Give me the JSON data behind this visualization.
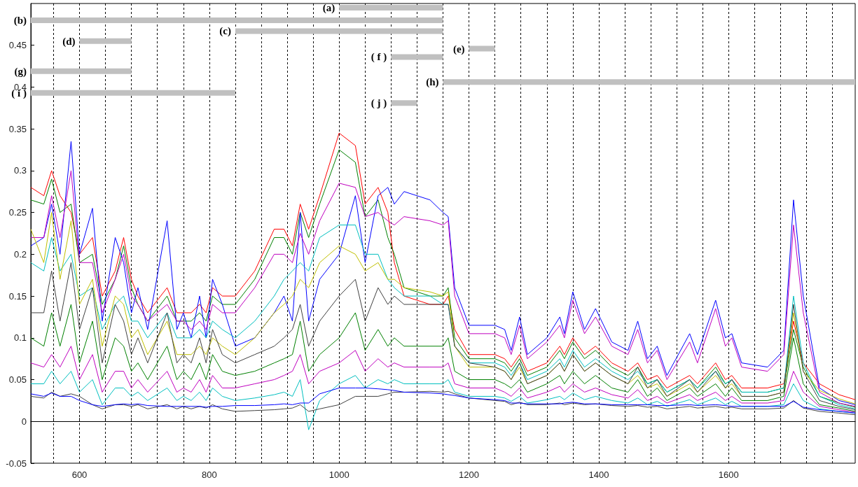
{
  "chart_data": {
    "type": "line",
    "marker": "none",
    "line_style": "solid",
    "grid": "x",
    "x": [
      525,
      545,
      557,
      570,
      587,
      600,
      620,
      635,
      655,
      668,
      680,
      690,
      705,
      735,
      750,
      760,
      772,
      785,
      795,
      805,
      820,
      840,
      870,
      900,
      915,
      928,
      940,
      953,
      970,
      1000,
      1025,
      1040,
      1060,
      1075,
      1085,
      1100,
      1140,
      1160,
      1168,
      1178,
      1200,
      1240,
      1255,
      1265,
      1278,
      1290,
      1320,
      1340,
      1347,
      1360,
      1378,
      1395,
      1420,
      1445,
      1460,
      1475,
      1490,
      1505,
      1540,
      1552,
      1580,
      1595,
      1605,
      1620,
      1660,
      1685,
      1700,
      1715,
      1740,
      1770,
      1795
    ],
    "xlim": [
      525,
      1795
    ],
    "xticks": [
      {
        "value": 560,
        "label": null
      },
      600,
      {
        "value": 640,
        "label": null
      },
      {
        "value": 680,
        "label": null
      },
      {
        "value": 720,
        "label": null
      },
      {
        "value": 760,
        "label": null
      },
      800,
      {
        "value": 840,
        "label": null
      },
      {
        "value": 880,
        "label": null
      },
      {
        "value": 920,
        "label": null
      },
      {
        "value": 960,
        "label": null
      },
      1000,
      {
        "value": 1040,
        "label": null
      },
      {
        "value": 1080,
        "label": null
      },
      {
        "value": 1120,
        "label": null
      },
      {
        "value": 1160,
        "label": null
      },
      1200,
      {
        "value": 1240,
        "label": null
      },
      {
        "value": 1280,
        "label": null
      },
      {
        "value": 1320,
        "label": null
      },
      {
        "value": 1360,
        "label": null
      },
      1400,
      {
        "value": 1440,
        "label": null
      },
      {
        "value": 1480,
        "label": null
      },
      {
        "value": 1520,
        "label": null
      },
      {
        "value": 1560,
        "label": null
      },
      1600,
      {
        "value": 1640,
        "label": null
      },
      {
        "value": 1680,
        "label": null
      },
      {
        "value": 1720,
        "label": null
      },
      {
        "value": 1760,
        "label": null
      }
    ],
    "ylim": [
      -0.05,
      0.5
    ],
    "yticks": [
      -0.05,
      0,
      0.05,
      0.1,
      0.15,
      0.2,
      0.25,
      0.3,
      0.35,
      0.4,
      0.45
    ],
    "series": [
      {
        "color": "#ff0000",
        "values": [
          0.28,
          0.27,
          0.3,
          0.27,
          0.25,
          0.2,
          0.22,
          0.15,
          0.18,
          0.22,
          0.17,
          0.15,
          0.13,
          0.16,
          0.13,
          0.13,
          0.13,
          0.14,
          0.13,
          0.16,
          0.15,
          0.15,
          0.18,
          0.23,
          0.23,
          0.21,
          0.26,
          0.23,
          0.27,
          0.345,
          0.33,
          0.26,
          0.28,
          0.25,
          0.19,
          0.15,
          0.14,
          0.14,
          0.15,
          0.11,
          0.08,
          0.08,
          0.075,
          0.065,
          0.08,
          0.06,
          0.07,
          0.09,
          0.08,
          0.1,
          0.08,
          0.09,
          0.07,
          0.06,
          0.07,
          0.05,
          0.055,
          0.04,
          0.055,
          0.045,
          0.07,
          0.05,
          0.055,
          0.04,
          0.04,
          0.045,
          0.12,
          0.07,
          0.045,
          0.032,
          0.026
        ]
      },
      {
        "color": "#008000",
        "values": [
          0.265,
          0.26,
          0.29,
          0.25,
          0.26,
          0.19,
          0.2,
          0.14,
          0.17,
          0.21,
          0.16,
          0.14,
          0.12,
          0.15,
          0.12,
          0.12,
          0.12,
          0.13,
          0.12,
          0.15,
          0.14,
          0.14,
          0.17,
          0.22,
          0.22,
          0.2,
          0.25,
          0.22,
          0.26,
          0.325,
          0.31,
          0.245,
          0.265,
          0.22,
          0.2,
          0.16,
          0.15,
          0.15,
          0.16,
          0.1,
          0.075,
          0.075,
          0.07,
          0.06,
          0.075,
          0.055,
          0.065,
          0.085,
          0.075,
          0.095,
          0.075,
          0.085,
          0.065,
          0.055,
          0.065,
          0.045,
          0.05,
          0.035,
          0.05,
          0.04,
          0.065,
          0.045,
          0.05,
          0.035,
          0.035,
          0.04,
          0.11,
          0.065,
          0.03,
          0.022,
          0.017
        ]
      },
      {
        "color": "#0000ff",
        "values": [
          0.21,
          0.22,
          0.26,
          0.2,
          0.335,
          0.2,
          0.255,
          0.12,
          0.22,
          0.19,
          0.13,
          0.16,
          0.11,
          0.24,
          0.11,
          0.13,
          0.1,
          0.15,
          0.1,
          0.17,
          0.14,
          0.09,
          0.1,
          0.13,
          0.15,
          0.12,
          0.25,
          0.12,
          0.17,
          0.2,
          0.27,
          0.19,
          0.27,
          0.28,
          0.26,
          0.275,
          0.265,
          0.25,
          0.245,
          0.16,
          0.115,
          0.115,
          0.11,
          0.085,
          0.125,
          0.08,
          0.1,
          0.125,
          0.105,
          0.155,
          0.11,
          0.135,
          0.095,
          0.085,
          0.12,
          0.075,
          0.09,
          0.055,
          0.105,
          0.08,
          0.145,
          0.1,
          0.105,
          0.07,
          0.065,
          0.085,
          0.265,
          0.15,
          0.04,
          0.025,
          0.02
        ]
      },
      {
        "color": "#bf00bf",
        "values": [
          0.22,
          0.22,
          0.27,
          0.22,
          0.3,
          0.19,
          0.19,
          0.13,
          0.17,
          0.2,
          0.15,
          0.14,
          0.12,
          0.14,
          0.12,
          0.12,
          0.11,
          0.12,
          0.11,
          0.14,
          0.13,
          0.13,
          0.16,
          0.2,
          0.2,
          0.19,
          0.225,
          0.2,
          0.24,
          0.285,
          0.28,
          0.245,
          0.25,
          0.24,
          0.235,
          0.245,
          0.24,
          0.235,
          0.24,
          0.15,
          0.105,
          0.105,
          0.1,
          0.08,
          0.115,
          0.075,
          0.095,
          0.115,
          0.1,
          0.145,
          0.105,
          0.125,
          0.09,
          0.08,
          0.11,
          0.07,
          0.085,
          0.05,
          0.095,
          0.07,
          0.135,
          0.09,
          0.1,
          0.065,
          0.06,
          0.08,
          0.235,
          0.13,
          0.035,
          0.022,
          0.018
        ]
      },
      {
        "color": "#00bfbf",
        "values": [
          0.19,
          0.18,
          0.22,
          0.18,
          0.2,
          0.15,
          0.16,
          0.11,
          0.14,
          0.15,
          0.12,
          0.12,
          0.1,
          0.13,
          0.1,
          0.1,
          0.1,
          0.11,
          0.1,
          0.12,
          0.11,
          0.1,
          0.12,
          0.15,
          0.17,
          0.18,
          0.19,
          0.18,
          0.22,
          0.235,
          0.235,
          0.2,
          0.2,
          0.17,
          0.16,
          0.15,
          0.15,
          0.14,
          0.14,
          0.09,
          0.07,
          0.07,
          0.065,
          0.055,
          0.07,
          0.05,
          0.06,
          0.075,
          0.065,
          0.085,
          0.065,
          0.075,
          0.06,
          0.05,
          0.06,
          0.045,
          0.05,
          0.035,
          0.05,
          0.04,
          0.06,
          0.045,
          0.05,
          0.035,
          0.035,
          0.04,
          0.15,
          0.07,
          0.03,
          0.02,
          0.015
        ]
      },
      {
        "color": "#bfbf00",
        "values": [
          0.23,
          0.19,
          0.25,
          0.17,
          0.24,
          0.14,
          0.17,
          0.09,
          0.15,
          0.14,
          0.1,
          0.11,
          0.08,
          0.12,
          0.08,
          0.08,
          0.08,
          0.09,
          0.08,
          0.1,
          0.09,
          0.08,
          0.1,
          0.13,
          0.14,
          0.15,
          0.17,
          0.16,
          0.19,
          0.21,
          0.2,
          0.18,
          0.19,
          0.17,
          0.17,
          0.16,
          0.155,
          0.15,
          0.155,
          0.09,
          0.065,
          0.065,
          0.06,
          0.05,
          0.065,
          0.045,
          0.055,
          0.07,
          0.06,
          0.08,
          0.06,
          0.07,
          0.055,
          0.045,
          0.055,
          0.04,
          0.045,
          0.03,
          0.045,
          0.035,
          0.055,
          0.04,
          0.045,
          0.03,
          0.03,
          0.035,
          0.13,
          0.06,
          0.037,
          0.027,
          0.021
        ]
      },
      {
        "color": "#404040",
        "values": [
          0.13,
          0.13,
          0.18,
          0.12,
          0.19,
          0.11,
          0.16,
          0.07,
          0.14,
          0.12,
          0.08,
          0.1,
          0.07,
          0.13,
          0.07,
          0.08,
          0.07,
          0.1,
          0.07,
          0.11,
          0.08,
          0.07,
          0.08,
          0.09,
          0.1,
          0.11,
          0.14,
          0.09,
          0.12,
          0.15,
          0.17,
          0.12,
          0.16,
          0.14,
          0.15,
          0.14,
          0.14,
          0.14,
          0.14,
          0.09,
          0.07,
          0.065,
          0.06,
          0.05,
          0.07,
          0.045,
          0.055,
          0.07,
          0.06,
          0.08,
          0.06,
          0.07,
          0.055,
          0.045,
          0.065,
          0.04,
          0.05,
          0.03,
          0.05,
          0.035,
          0.06,
          0.04,
          0.05,
          0.03,
          0.03,
          0.035,
          0.14,
          0.06,
          0.025,
          0.018,
          0.014
        ]
      },
      {
        "color": "#008000",
        "values": [
          0.1,
          0.09,
          0.13,
          0.09,
          0.14,
          0.07,
          0.12,
          0.05,
          0.1,
          0.09,
          0.06,
          0.07,
          0.05,
          0.09,
          0.05,
          0.06,
          0.05,
          0.07,
          0.05,
          0.08,
          0.06,
          0.055,
          0.06,
          0.07,
          0.075,
          0.08,
          0.12,
          0.06,
          0.08,
          0.1,
          0.13,
          0.085,
          0.11,
          0.09,
          0.1,
          0.09,
          0.09,
          0.09,
          0.1,
          0.06,
          0.05,
          0.05,
          0.045,
          0.04,
          0.05,
          0.035,
          0.045,
          0.055,
          0.045,
          0.06,
          0.045,
          0.055,
          0.04,
          0.035,
          0.05,
          0.03,
          0.04,
          0.025,
          0.04,
          0.03,
          0.045,
          0.03,
          0.04,
          0.025,
          0.025,
          0.03,
          0.1,
          0.045,
          0.02,
          0.016,
          0.012
        ]
      },
      {
        "color": "#bf00bf",
        "values": [
          0.07,
          0.065,
          0.08,
          0.065,
          0.09,
          0.05,
          0.08,
          0.035,
          0.06,
          0.06,
          0.04,
          0.05,
          0.035,
          0.06,
          0.035,
          0.04,
          0.035,
          0.05,
          0.035,
          0.055,
          0.04,
          0.04,
          0.045,
          0.05,
          0.055,
          0.06,
          0.08,
          0.045,
          0.06,
          0.07,
          0.085,
          0.06,
          0.075,
          0.065,
          0.07,
          0.065,
          0.065,
          0.065,
          0.07,
          0.045,
          0.04,
          0.04,
          0.035,
          0.03,
          0.04,
          0.028,
          0.035,
          0.042,
          0.035,
          0.045,
          0.035,
          0.04,
          0.032,
          0.028,
          0.038,
          0.025,
          0.03,
          0.022,
          0.032,
          0.025,
          0.035,
          0.025,
          0.03,
          0.022,
          0.022,
          0.025,
          0.06,
          0.035,
          0.018,
          0.014,
          0.011
        ]
      },
      {
        "color": "#00bfbf",
        "values": [
          0.045,
          0.045,
          0.06,
          0.045,
          0.06,
          0.035,
          0.05,
          0.02,
          0.04,
          0.04,
          0.03,
          0.035,
          0.025,
          0.04,
          0.025,
          0.03,
          0.025,
          0.035,
          0.025,
          0.04,
          0.03,
          0.025,
          0.028,
          0.032,
          0.035,
          0.03,
          0.05,
          -0.01,
          0.025,
          0.045,
          0.055,
          0.04,
          0.05,
          0.045,
          0.05,
          0.045,
          0.045,
          0.045,
          0.05,
          0.035,
          0.03,
          0.03,
          0.028,
          0.024,
          0.03,
          0.022,
          0.026,
          0.03,
          0.026,
          0.034,
          0.026,
          0.03,
          0.025,
          0.022,
          0.028,
          0.02,
          0.024,
          0.018,
          0.026,
          0.02,
          0.028,
          0.02,
          0.024,
          0.018,
          0.018,
          0.02,
          0.045,
          0.025,
          0.015,
          0.012,
          0.01
        ]
      },
      {
        "color": "#404040",
        "values": [
          0.03,
          0.028,
          0.035,
          0.03,
          0.033,
          0.03,
          0.02,
          0.015,
          0.02,
          0.02,
          0.018,
          0.02,
          0.015,
          0.02,
          0.015,
          0.018,
          0.015,
          0.018,
          0.016,
          0.02,
          0.015,
          0.012,
          0.013,
          0.014,
          0.015,
          0.016,
          0.02,
          0.012,
          0.015,
          0.02,
          0.03,
          0.03,
          0.03,
          0.033,
          0.035,
          0.035,
          0.036,
          0.035,
          0.036,
          0.033,
          0.028,
          0.025,
          0.024,
          0.02,
          0.023,
          0.02,
          0.02,
          0.022,
          0.02,
          0.022,
          0.02,
          0.021,
          0.019,
          0.018,
          0.019,
          0.017,
          0.018,
          0.015,
          0.018,
          0.016,
          0.018,
          0.016,
          0.017,
          0.015,
          0.015,
          0.016,
          0.025,
          0.016,
          0.012,
          0.01,
          0.008
        ]
      },
      {
        "color": "#0000ff",
        "values": [
          0.033,
          0.03,
          0.034,
          0.03,
          0.03,
          0.025,
          0.02,
          0.018,
          0.02,
          0.021,
          0.02,
          0.021,
          0.019,
          0.018,
          0.018,
          0.018,
          0.018,
          0.018,
          0.017,
          0.018,
          0.018,
          0.019,
          0.019,
          0.02,
          0.021,
          0.02,
          0.022,
          0.022,
          0.033,
          0.04,
          0.04,
          0.04,
          0.039,
          0.038,
          0.037,
          0.035,
          0.034,
          0.033,
          0.032,
          0.031,
          0.028,
          0.026,
          0.025,
          0.022,
          0.022,
          0.021,
          0.021,
          0.021,
          0.022,
          0.023,
          0.021,
          0.021,
          0.02,
          0.02,
          0.02,
          0.02,
          0.019,
          0.019,
          0.02,
          0.019,
          0.02,
          0.019,
          0.018,
          0.018,
          0.018,
          0.018,
          0.024,
          0.017,
          0.014,
          0.012,
          0.01
        ]
      },
      {
        "name": "(a)",
        "color": "#c0c0c0",
        "x": [
          1000,
          1160
        ],
        "values": [
          0.495,
          0.495
        ]
      },
      {
        "name": "(b)",
        "color": "#c0c0c0",
        "x": [
          525,
          1160
        ],
        "values": [
          0.48,
          0.48
        ]
      },
      {
        "name": "(c)",
        "color": "#c0c0c0",
        "x": [
          840,
          1160
        ],
        "values": [
          0.467,
          0.467
        ]
      },
      {
        "name": "(d)",
        "color": "#c0c0c0",
        "x": [
          600,
          680
        ],
        "values": [
          0.455,
          0.455
        ]
      },
      {
        "name": "(e)",
        "color": "#c0c0c0",
        "x": [
          1200,
          1240
        ],
        "values": [
          0.446,
          0.446
        ]
      },
      {
        "name": "( f )",
        "color": "#c0c0c0",
        "x": [
          1080,
          1160
        ],
        "values": [
          0.436,
          0.436
        ]
      },
      {
        "name": "(g)",
        "color": "#c0c0c0",
        "x": [
          525,
          680
        ],
        "values": [
          0.419,
          0.419
        ]
      },
      {
        "name": "(h)",
        "color": "#c0c0c0",
        "x": [
          1160,
          1795
        ],
        "values": [
          0.406,
          0.406
        ]
      },
      {
        "name": "( i )",
        "color": "#c0c0c0",
        "x": [
          525,
          840
        ],
        "values": [
          0.393,
          0.393
        ]
      },
      {
        "name": "( j )",
        "color": "#c0c0c0",
        "x": [
          1080,
          1120
        ],
        "values": [
          0.381,
          0.381
        ]
      }
    ]
  }
}
